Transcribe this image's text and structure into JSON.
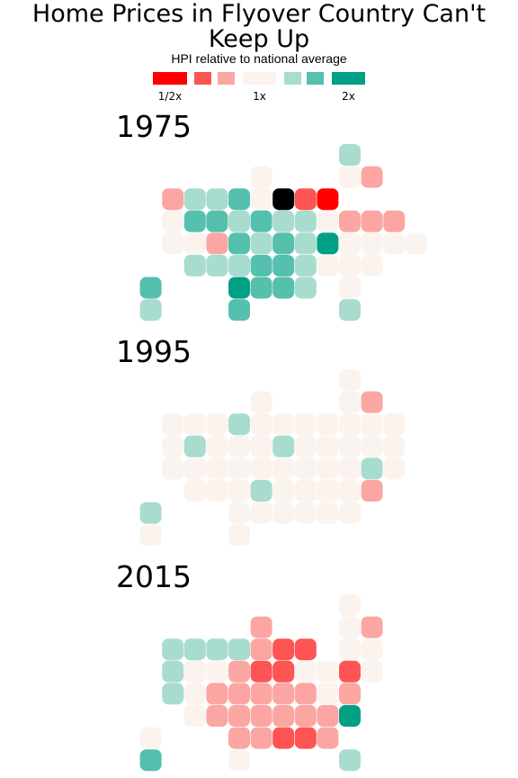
{
  "title": "Home Prices in Flyover Country Can't Keep Up",
  "subtitle": "HPI relative to national average",
  "colors": {
    "-3": "#ff0000",
    "-2": "#fe5454",
    "-1": "#fba6a2",
    "0": "#fbf3ee",
    "1": "#a8dccf",
    "2": "#55c0ae",
    "3": "#00a087"
  },
  "legend": {
    "swatches": [
      -3,
      -2,
      -1,
      0,
      1,
      2,
      3
    ],
    "labels": [
      {
        "text": "1/2x",
        "at": -3
      },
      {
        "text": "1x",
        "at": 0
      },
      {
        "text": "2x",
        "at": 3
      }
    ]
  },
  "chart_data": {
    "type": "heatmap",
    "description_scale": "diverging bins from 1/2x to 2x HPI relative to national average",
    "panels": [
      {
        "label": "1975",
        "rows": [
          "..........1",
          "......0...0-1",
          "..-11120-.-2-3",
          "..02212110-1-1-1",
          "..00-1212130000",
          "...111221000",
          ".2...3221.0",
          ".1...2....1"
        ]
      },
      {
        "label": "1995",
        "rows": [
          "..........0",
          "......0...0-1",
          "..00010000000",
          "..01000100000",
          "..00000000010",
          "...00010000-1",
          ".1...000000",
          ".0...0"
        ]
      },
      {
        "label": "2015",
        "rows": [
          "..........0",
          "......-1...0-1",
          "..1111-1-2-2.00",
          "..100-1-2-200-20",
          "..10-1-1-1-1-10-1",
          "...0-1-1-1-1-1-13",
          ".0...-1-1-2-2-1",
          ".2...0....1"
        ]
      }
    ]
  }
}
